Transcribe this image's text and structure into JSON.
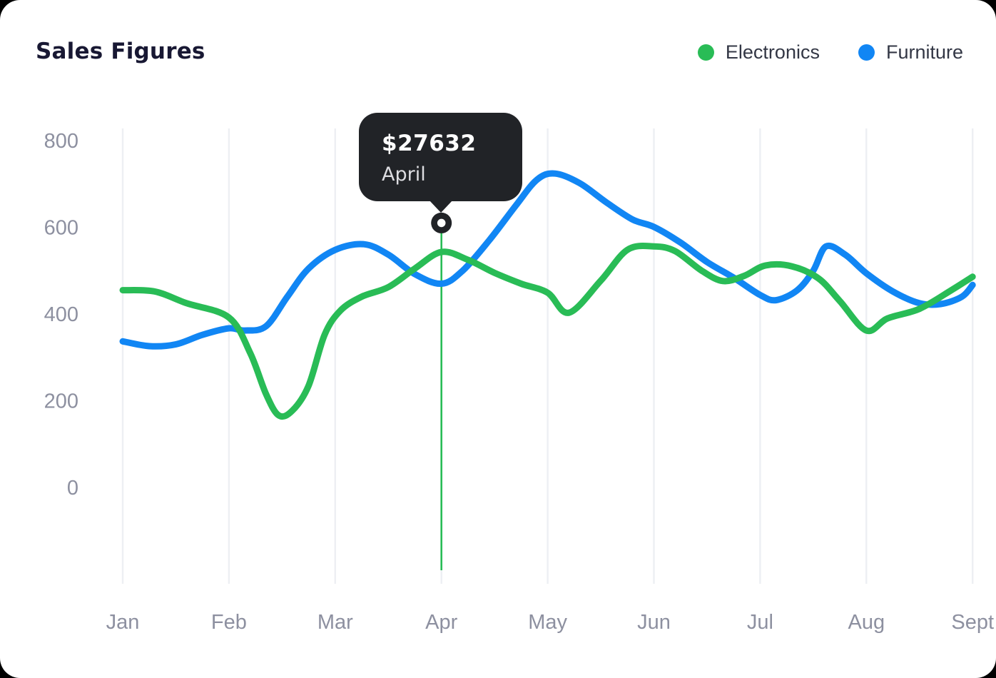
{
  "page": {
    "background": "#000000",
    "card_background": "#ffffff"
  },
  "header": {
    "title": "Sales Figures",
    "legend": [
      {
        "label": "Electronics",
        "color": "#29bc56"
      },
      {
        "label": "Furniture",
        "color": "#1186f4"
      }
    ]
  },
  "tooltip": {
    "value": "$27632",
    "label": "April",
    "bg": "#212327",
    "marker_outer_color": "#212327",
    "marker_inner_color": "#ffffff"
  },
  "chart_data": {
    "type": "line",
    "title": "Sales Figures",
    "categories": [
      "Jan",
      "Feb",
      "Mar",
      "Apr",
      "May",
      "Jun",
      "Jul",
      "Aug",
      "Sept"
    ],
    "ylim": [
      0,
      800
    ],
    "yticks": [
      0,
      200,
      400,
      600,
      800
    ],
    "grid": "vertical-only",
    "grid_color": "#edeff3",
    "axis_text_color": "#8d90a0",
    "legend_position": "top-right",
    "smooth": true,
    "series": [
      {
        "name": "Electronics",
        "color": "#29bc56",
        "x": [
          0,
          0.3,
          0.6,
          1,
          1.2,
          1.35,
          1.47,
          1.6,
          1.75,
          1.9,
          2.05,
          2.25,
          2.5,
          2.75,
          3,
          3.25,
          3.5,
          3.75,
          4,
          4.2,
          4.5,
          4.75,
          5,
          5.2,
          5.45,
          5.65,
          5.85,
          6.05,
          6.3,
          6.55,
          6.75,
          7,
          7.2,
          7.5,
          7.8,
          8
        ],
        "values": [
          455,
          452,
          425,
          392,
          310,
          215,
          166,
          178,
          235,
          352,
          408,
          440,
          462,
          505,
          543,
          525,
          495,
          470,
          449,
          403,
          477,
          548,
          556,
          545,
          500,
          476,
          488,
          512,
          510,
          482,
          430,
          362,
          390,
          412,
          455,
          486
        ]
      },
      {
        "name": "Furniture",
        "color": "#1186f4",
        "x": [
          0,
          0.25,
          0.5,
          0.75,
          1,
          1.15,
          1.35,
          1.55,
          1.75,
          2,
          2.27,
          2.5,
          2.75,
          3,
          3.2,
          3.45,
          3.7,
          3.9,
          4.07,
          4.3,
          4.55,
          4.8,
          5,
          5.25,
          5.5,
          5.75,
          6,
          6.15,
          6.35,
          6.5,
          6.62,
          6.8,
          7,
          7.25,
          7.5,
          7.7,
          7.9,
          8
        ],
        "values": [
          337,
          326,
          330,
          352,
          367,
          362,
          372,
          440,
          505,
          548,
          561,
          537,
          492,
          470,
          500,
          570,
          650,
          710,
          724,
          702,
          658,
          618,
          601,
          565,
          520,
          484,
          444,
          432,
          455,
          500,
          556,
          537,
          494,
          452,
          425,
          423,
          440,
          467
        ]
      }
    ],
    "highlight": {
      "category": "April",
      "category_index": 3,
      "value_label": "$27632",
      "marker_value": 610,
      "line_color": "#29bc56"
    }
  }
}
